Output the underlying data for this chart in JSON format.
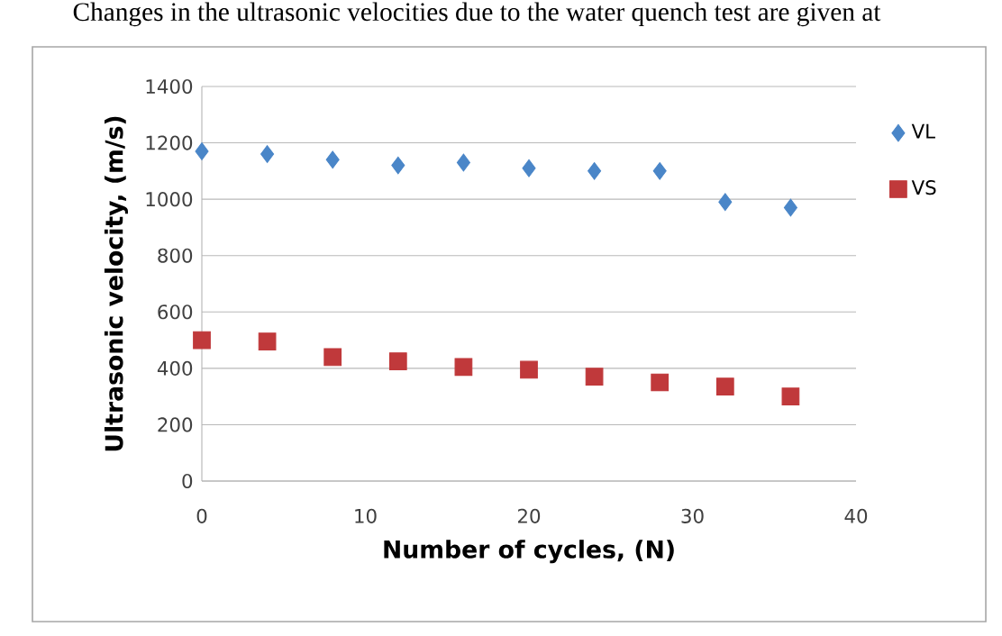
{
  "chart_data": {
    "type": "scatter",
    "xlabel": "Number of cycles, (N)",
    "ylabel": "Ultrasonic velocity, (m/s)",
    "annotations": [
      "Changes in the ultrasonic velocities due to the water quench test are given at"
    ],
    "x": [
      0,
      4,
      8,
      12,
      16,
      20,
      24,
      28,
      32,
      36
    ],
    "series": [
      {
        "name": "VL",
        "color": "#4a86c8",
        "marker": "diamond",
        "values": [
          1170,
          1160,
          1140,
          1120,
          1130,
          1110,
          1100,
          1100,
          990,
          970
        ]
      },
      {
        "name": "VS",
        "color": "#c0393b",
        "marker": "square",
        "values": [
          500,
          495,
          440,
          425,
          405,
          395,
          370,
          350,
          335,
          300
        ]
      }
    ],
    "xlim": [
      0,
      40
    ],
    "xticks": [
      0,
      10,
      20,
      30,
      40
    ],
    "ylim": [
      0,
      1400
    ],
    "yticks": [
      0,
      200,
      400,
      600,
      800,
      1000,
      1200,
      1400
    ],
    "grid": "y",
    "legend": "right"
  }
}
